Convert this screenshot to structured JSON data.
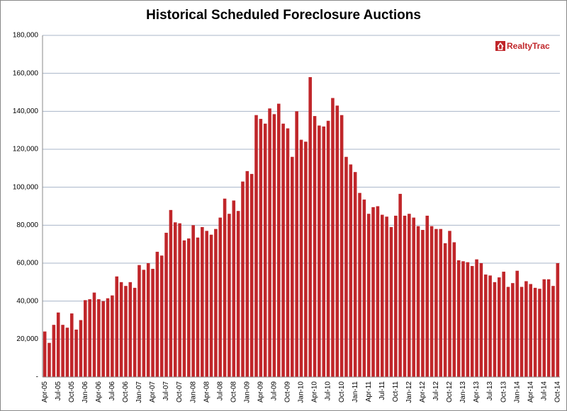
{
  "logo": "RealtyTrac",
  "chart_data": {
    "type": "bar",
    "title": "Historical Scheduled Foreclosure Auctions",
    "categories": [
      "Apr-05",
      null,
      null,
      "Jul-05",
      null,
      null,
      "Oct-05",
      null,
      null,
      "Jan-06",
      null,
      null,
      "Apr-06",
      null,
      null,
      "Jul-06",
      null,
      null,
      "Oct-06",
      null,
      null,
      "Jan-07",
      null,
      null,
      "Apr-07",
      null,
      null,
      "Jul-07",
      null,
      null,
      "Oct-07",
      null,
      null,
      "Jan-08",
      null,
      null,
      "Apr-08",
      null,
      null,
      "Jul-08",
      null,
      null,
      "Oct-08",
      null,
      null,
      "Jan-09",
      null,
      null,
      "Apr-09",
      null,
      null,
      "Jul-09",
      null,
      null,
      "Oct-09",
      null,
      null,
      "Jan-10",
      null,
      null,
      "Apr-10",
      null,
      null,
      "Jul-10",
      null,
      null,
      "Oct-10",
      null,
      null,
      "Jan-11",
      null,
      null,
      "Apr-11",
      null,
      null,
      "Jul-11",
      null,
      null,
      "Oct-11",
      null,
      null,
      "Jan-12",
      null,
      null,
      "Apr-12",
      null,
      null,
      "Jul-12",
      null,
      null,
      "Oct-12",
      null,
      null,
      "Jan-13",
      null,
      null,
      "Apr-13",
      null,
      null,
      "Jul-13",
      null,
      null,
      "Oct-13",
      null,
      null,
      "Jan-14",
      null,
      null,
      "Apr-14",
      null,
      null,
      "Jul-14",
      null,
      null,
      "Oct-14"
    ],
    "values": [
      24000,
      18000,
      27500,
      34000,
      27500,
      26000,
      33500,
      25000,
      30000,
      40500,
      41000,
      44500,
      41000,
      40000,
      41500,
      43000,
      53000,
      50000,
      48000,
      50000,
      47000,
      59000,
      56500,
      60000,
      57000,
      66000,
      64000,
      76000,
      88000,
      81500,
      81000,
      72000,
      73000,
      80000,
      73500,
      79000,
      77000,
      75000,
      78000,
      84000,
      94000,
      86000,
      93000,
      87500,
      103000,
      108500,
      107000,
      138000,
      136000,
      133500,
      141500,
      138500,
      144000,
      133500,
      131000,
      116000,
      140000,
      125000,
      124000,
      158000,
      137500,
      132500,
      132000,
      135000,
      147000,
      143000,
      138000,
      116000,
      112000,
      108000,
      97000,
      93500,
      86000,
      89500,
      90000,
      85500,
      84500,
      79000,
      85000,
      96500,
      85000,
      86000,
      84000,
      79500,
      77500,
      85000,
      79500,
      78000,
      78000,
      70500,
      77000,
      71000,
      61500,
      61000,
      60500,
      58500,
      62000,
      60000,
      54000,
      53500,
      50000,
      52500,
      55500,
      47500,
      49500,
      56000,
      47500,
      50500,
      49000,
      47000,
      46500,
      51500,
      51500,
      48000,
      60000
    ],
    "color": "#c0262a",
    "ylim": [
      0,
      180000
    ],
    "yticks": [
      {
        "value": 0,
        "label": "-"
      },
      {
        "value": 20000,
        "label": "20,000"
      },
      {
        "value": 40000,
        "label": "40,000"
      },
      {
        "value": 60000,
        "label": "60,000"
      },
      {
        "value": 80000,
        "label": "80,000"
      },
      {
        "value": 100000,
        "label": "100,000"
      },
      {
        "value": 120000,
        "label": "120,000"
      },
      {
        "value": 140000,
        "label": "140,000"
      },
      {
        "value": 160000,
        "label": "160,000"
      },
      {
        "value": 180000,
        "label": "180,000"
      }
    ],
    "grid": true
  }
}
